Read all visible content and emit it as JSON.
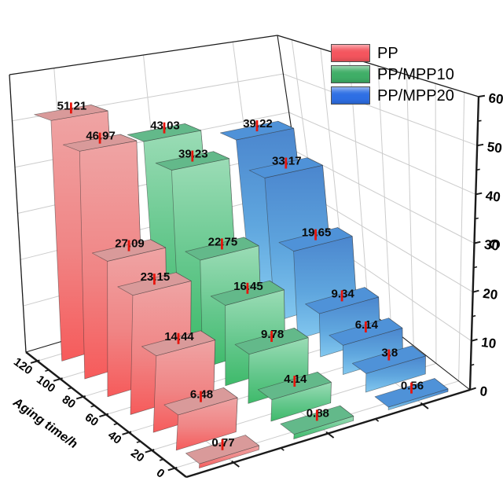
{
  "chart_data": {
    "type": "bar",
    "projection": "3d",
    "title": "",
    "categories": [
      0,
      20,
      40,
      60,
      80,
      100,
      120
    ],
    "depth_axis": {
      "label": "Aging time/h",
      "ticks": [
        0,
        20,
        40,
        60,
        80,
        100,
        120
      ]
    },
    "value_axis": {
      "label": "C",
      "ticks": [
        0,
        10,
        20,
        30,
        40,
        50,
        60
      ],
      "min": 0,
      "max": 60,
      "minor_step": 5
    },
    "series_axis": {
      "label": "",
      "major_tick_count": 3
    },
    "series": [
      {
        "name": "PP",
        "color": "#f4555e",
        "values": [
          0.77,
          6.48,
          14.44,
          23.15,
          27.09,
          46.97,
          51.21
        ],
        "faces": {
          "front_top": "#efa4a4",
          "front_mid": "#f08585",
          "front_bottom": "#f65b5b",
          "top": "#d99a9a",
          "side": "#bd8888"
        }
      },
      {
        "name": "PP/MPP10",
        "color": "#3fae67",
        "values": [
          0.88,
          4.14,
          9.78,
          16.45,
          22.75,
          39.23,
          43.03
        ],
        "faces": {
          "front_top": "#9bdcb6",
          "front_mid": "#64c78c",
          "front_bottom": "#3eba6a",
          "top": "#63b98a",
          "side": "#56a97c"
        }
      },
      {
        "name": "PP/MPP20",
        "color": "#2e6fe4",
        "values": [
          0.56,
          3.8,
          6.14,
          9.34,
          19.65,
          33.17,
          39.22
        ],
        "faces": {
          "front_top": "#4b86ce",
          "front_mid": "#5fa6de",
          "front_bottom": "#83c8ef",
          "top": "#4f92d8",
          "side": "#3b70ae"
        }
      }
    ],
    "value_labels": true,
    "error_bar_color": "#e8150d",
    "grid": true,
    "grid_color": "#cccccc",
    "axis_color": "#1a1a1a",
    "legend_position": "top-right"
  }
}
